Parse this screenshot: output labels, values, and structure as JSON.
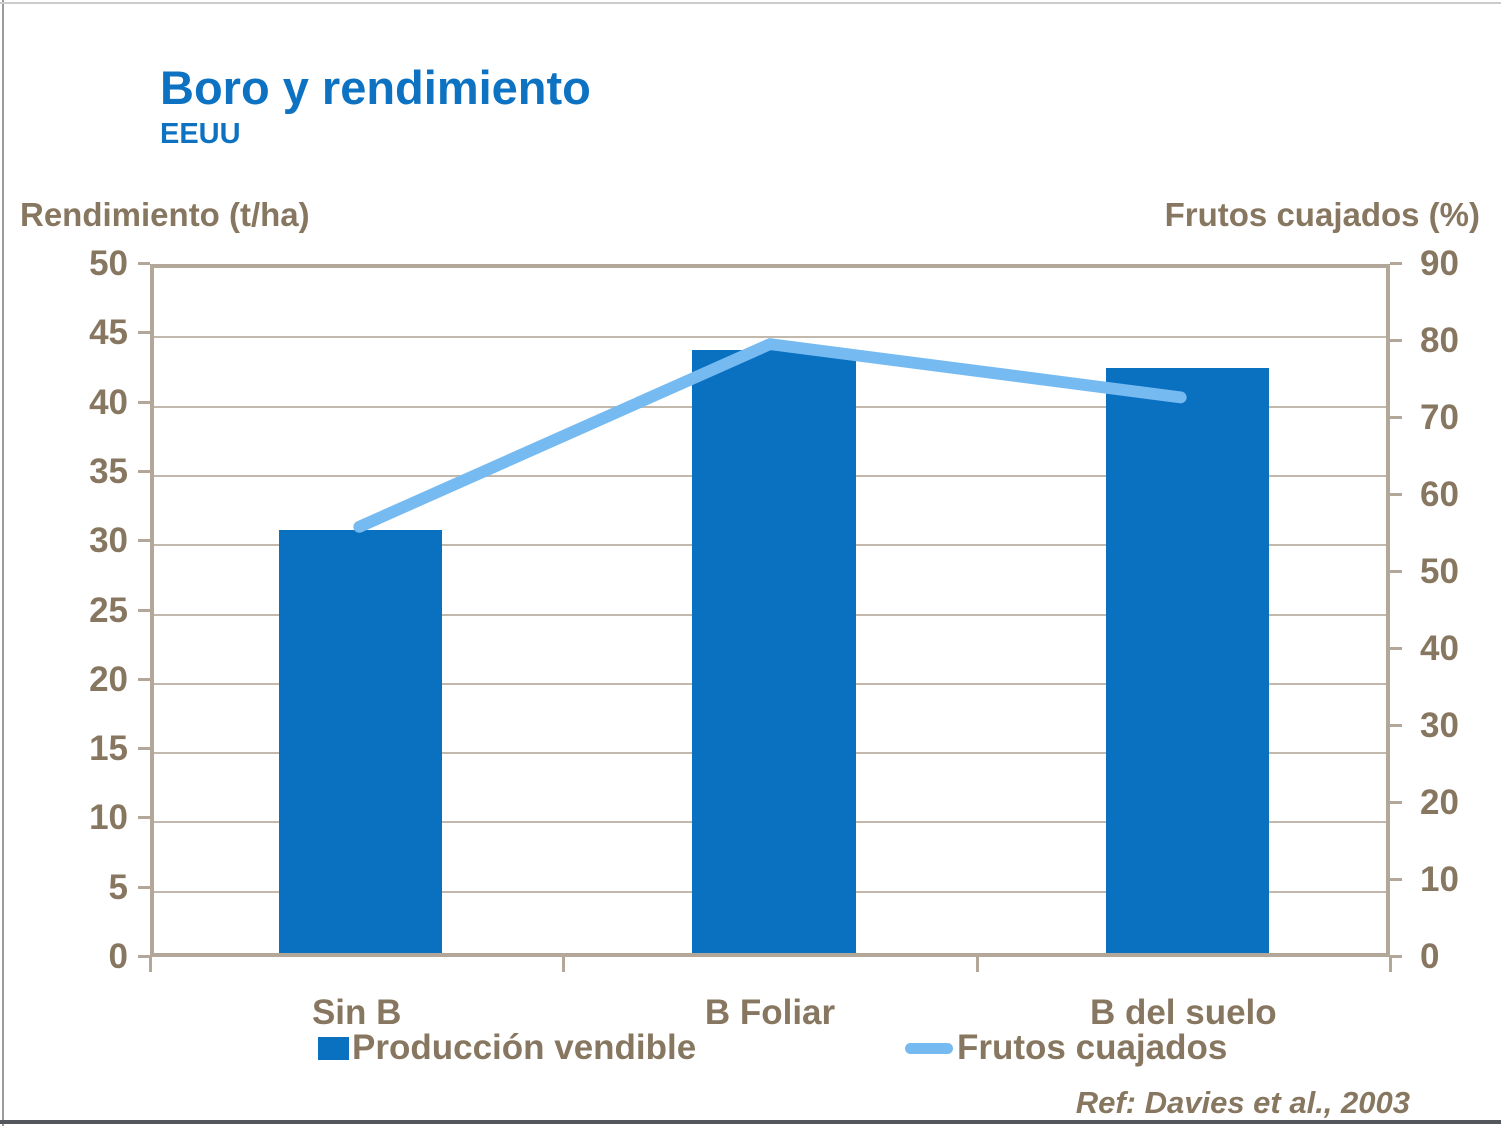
{
  "page": {
    "title": "Boro y rendimiento",
    "subtitle": "EEUU",
    "reference": "Ref: Davies et al., 2003"
  },
  "chart_data": {
    "type": "combo-bar-line",
    "categories": [
      "Sin B",
      "B Foliar",
      "B del suelo"
    ],
    "series": [
      {
        "name": "Producción vendible",
        "type": "bar",
        "axis": "left",
        "values": [
          30.5,
          43.5,
          42.2
        ],
        "color": "#0a70c0"
      },
      {
        "name": "Frutos cuajados",
        "type": "line",
        "axis": "right",
        "values": [
          56,
          80,
          73
        ],
        "color": "#76baf2"
      }
    ],
    "left_axis": {
      "title": "Rendimiento (t/ha)",
      "min": 0,
      "max": 50,
      "step": 5,
      "tick_labels": [
        "50",
        "45",
        "40",
        "35",
        "30",
        "25",
        "20",
        "15",
        "10",
        "5",
        "0"
      ]
    },
    "right_axis": {
      "title": "Frutos cuajados (%)",
      "min": 0,
      "max": 90,
      "step": 10,
      "tick_labels": [
        "90",
        "80",
        "70",
        "60",
        "50",
        "40",
        "30",
        "20",
        "10",
        "0"
      ]
    },
    "grid": true,
    "legend_position": "bottom",
    "legend_items": [
      {
        "label": "Producción vendible",
        "swatch": "bar-square"
      },
      {
        "label": "Frutos cuajados",
        "swatch": "line-segment"
      }
    ]
  },
  "colors": {
    "title_blue": "#0d72c2",
    "bar_blue": "#0a70c0",
    "line_blue": "#76baf2",
    "text_brown": "#877760",
    "plot_border": "#b3a79a",
    "gridline": "#c2b8ac",
    "edge_left": "#9b9b9b",
    "edge_top": "#cccccc",
    "edge_bottom": "#54585d"
  }
}
